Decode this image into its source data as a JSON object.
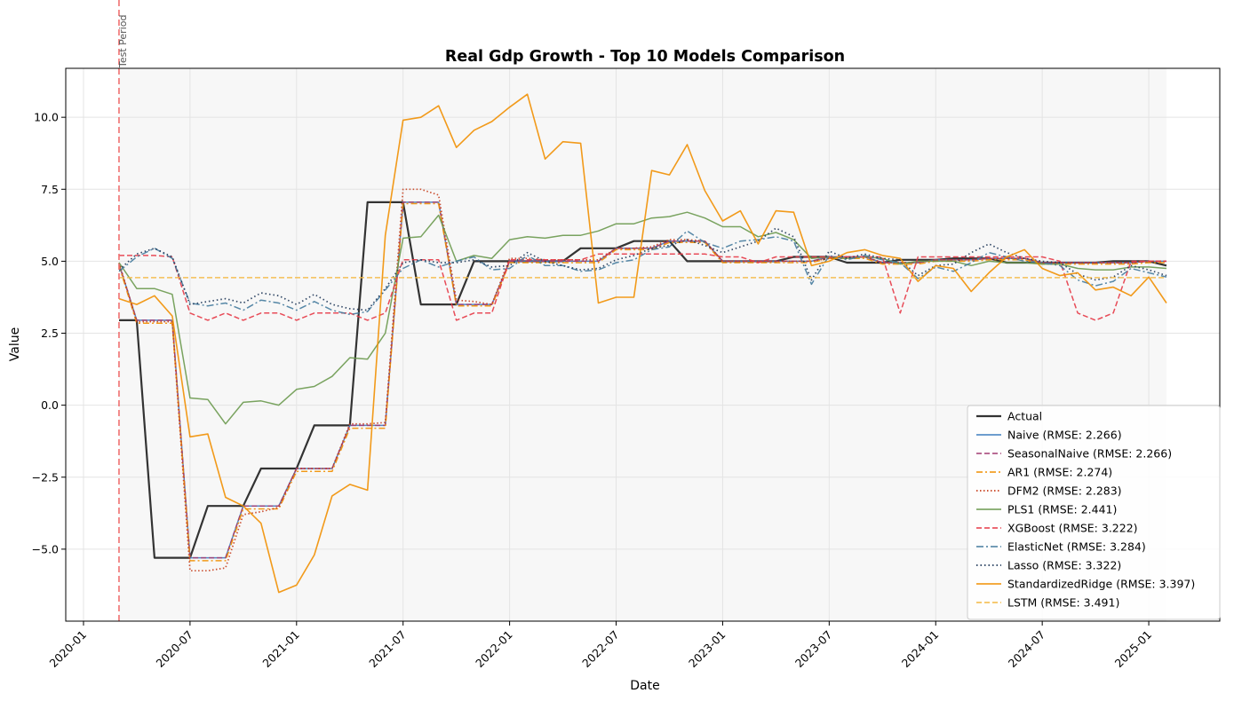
{
  "chart_data": {
    "type": "line",
    "title": "Real Gdp Growth - Top 10 Models Comparison",
    "xlabel": "Date",
    "ylabel": "Value",
    "x_ticks": [
      "2020-01",
      "2020-07",
      "2021-01",
      "2021-07",
      "2022-01",
      "2022-07",
      "2023-01",
      "2023-07",
      "2024-01",
      "2024-07",
      "2025-01"
    ],
    "y_ticks": [
      "−5.0",
      "−2.5",
      "0.0",
      "2.5",
      "5.0",
      "7.5",
      "10.0"
    ],
    "xlim": [
      "2019-12",
      "2025-05"
    ],
    "ylim": [
      -7.5,
      11.7
    ],
    "grid": true,
    "legend_position": "lower-right",
    "test_period_start": "2020-03",
    "test_period_label": "Test Period",
    "x_months": [
      "2020-03",
      "2020-04",
      "2020-05",
      "2020-06",
      "2020-07",
      "2020-08",
      "2020-09",
      "2020-10",
      "2020-11",
      "2020-12",
      "2021-01",
      "2021-02",
      "2021-03",
      "2021-04",
      "2021-05",
      "2021-06",
      "2021-07",
      "2021-08",
      "2021-09",
      "2021-10",
      "2021-11",
      "2021-12",
      "2022-01",
      "2022-02",
      "2022-03",
      "2022-04",
      "2022-05",
      "2022-06",
      "2022-07",
      "2022-08",
      "2022-09",
      "2022-10",
      "2022-11",
      "2022-12",
      "2023-01",
      "2023-02",
      "2023-03",
      "2023-04",
      "2023-05",
      "2023-06",
      "2023-07",
      "2023-08",
      "2023-09",
      "2023-10",
      "2023-11",
      "2023-12",
      "2024-01",
      "2024-02",
      "2024-03",
      "2024-04",
      "2024-05",
      "2024-06",
      "2024-07",
      "2024-08",
      "2024-09",
      "2024-10",
      "2024-11",
      "2024-12",
      "2025-01",
      "2025-02"
    ],
    "series": [
      {
        "name": "Actual",
        "color": "#333333",
        "dash": "",
        "width": 2.2,
        "values": [
          2.95,
          2.95,
          -5.3,
          -5.3,
          -5.3,
          -3.5,
          -3.5,
          -3.5,
          -2.2,
          -2.2,
          -2.2,
          -0.7,
          -0.7,
          -0.7,
          7.05,
          7.05,
          7.05,
          3.5,
          3.5,
          3.5,
          5.0,
          5.0,
          5.0,
          5.0,
          5.0,
          5.0,
          5.45,
          5.45,
          5.45,
          5.7,
          5.7,
          5.7,
          5.0,
          5.0,
          5.0,
          5.0,
          5.0,
          5.0,
          5.15,
          5.15,
          5.15,
          4.95,
          4.95,
          4.95,
          5.05,
          5.05,
          5.05,
          5.1,
          5.1,
          5.1,
          4.95,
          4.95,
          4.95,
          4.95,
          4.95,
          4.95,
          5.0,
          5.0,
          5.0,
          4.85
        ]
      },
      {
        "name": "Naive (RMSE: 2.266)",
        "color": "#3d7dbf",
        "dash": "",
        "width": 1.5,
        "values": [
          4.9,
          2.95,
          2.95,
          2.95,
          -5.3,
          -5.3,
          -5.3,
          -3.5,
          -3.5,
          -3.5,
          -2.2,
          -2.2,
          -2.2,
          -0.7,
          -0.7,
          -0.7,
          7.05,
          7.05,
          7.05,
          3.5,
          3.5,
          3.5,
          5.0,
          5.0,
          5.0,
          5.0,
          5.0,
          5.0,
          5.45,
          5.45,
          5.45,
          5.7,
          5.7,
          5.7,
          5.0,
          5.0,
          5.0,
          5.0,
          5.0,
          5.0,
          5.15,
          5.15,
          5.15,
          4.95,
          4.95,
          4.95,
          5.05,
          5.05,
          5.05,
          5.1,
          5.1,
          5.1,
          4.95,
          4.95,
          4.95,
          4.95,
          4.95,
          4.95,
          5.0,
          5.0
        ]
      },
      {
        "name": "SeasonalNaive (RMSE: 2.266)",
        "color": "#a23b72",
        "dash": "6,3",
        "width": 1.5,
        "values": [
          4.9,
          2.95,
          2.95,
          2.95,
          -5.3,
          -5.3,
          -5.3,
          -3.5,
          -3.5,
          -3.5,
          -2.2,
          -2.2,
          -2.2,
          -0.7,
          -0.7,
          -0.7,
          7.05,
          7.05,
          7.05,
          3.5,
          3.5,
          3.5,
          5.0,
          5.0,
          5.0,
          5.0,
          5.0,
          5.0,
          5.45,
          5.45,
          5.45,
          5.7,
          5.7,
          5.7,
          5.0,
          5.0,
          5.0,
          5.0,
          5.0,
          5.0,
          5.15,
          5.15,
          5.15,
          4.95,
          4.95,
          4.95,
          5.05,
          5.05,
          5.05,
          5.1,
          5.1,
          5.1,
          4.95,
          4.95,
          4.95,
          4.95,
          4.95,
          4.95,
          5.0,
          5.0
        ]
      },
      {
        "name": "AR1 (RMSE: 2.274)",
        "color": "#f18f01",
        "dash": "7,3,2,3",
        "width": 1.5,
        "values": [
          4.85,
          2.85,
          2.85,
          2.85,
          -5.4,
          -5.4,
          -5.4,
          -3.6,
          -3.6,
          -3.6,
          -2.3,
          -2.3,
          -2.3,
          -0.8,
          -0.8,
          -0.8,
          7.0,
          7.0,
          7.0,
          3.45,
          3.45,
          3.45,
          4.95,
          4.95,
          4.95,
          4.95,
          4.95,
          4.95,
          5.4,
          5.4,
          5.4,
          5.65,
          5.65,
          5.65,
          4.95,
          4.95,
          4.95,
          4.95,
          4.95,
          4.95,
          5.1,
          5.1,
          5.1,
          4.9,
          4.9,
          4.9,
          5.0,
          5.0,
          5.0,
          5.05,
          5.05,
          5.05,
          4.9,
          4.9,
          4.9,
          4.9,
          4.9,
          4.9,
          4.95,
          4.95
        ]
      },
      {
        "name": "DFM2 (RMSE: 2.283)",
        "color": "#c73e1d",
        "dash": "1.5,2.5",
        "width": 1.7,
        "values": [
          4.95,
          2.9,
          2.9,
          2.9,
          -5.75,
          -5.75,
          -5.65,
          -3.8,
          -3.7,
          -3.55,
          -2.2,
          -2.2,
          -2.2,
          -0.65,
          -0.65,
          -0.6,
          7.5,
          7.5,
          7.3,
          3.65,
          3.6,
          3.5,
          5.1,
          5.1,
          5.05,
          5.05,
          5.05,
          5.05,
          5.45,
          5.45,
          5.5,
          5.75,
          5.75,
          5.7,
          5.0,
          5.0,
          5.0,
          5.0,
          5.0,
          5.0,
          5.1,
          5.15,
          5.15,
          4.95,
          4.95,
          4.95,
          5.05,
          5.05,
          5.05,
          5.1,
          5.1,
          5.1,
          4.95,
          4.95,
          4.95,
          4.95,
          4.95,
          4.95,
          5.0,
          5.0
        ]
      },
      {
        "name": "PLS1 (RMSE: 2.441)",
        "color": "#6a994e",
        "dash": "",
        "width": 1.5,
        "values": [
          4.95,
          4.05,
          4.05,
          3.85,
          0.25,
          0.2,
          -0.65,
          0.1,
          0.15,
          0.0,
          0.55,
          0.65,
          1.0,
          1.65,
          1.6,
          2.5,
          5.8,
          5.85,
          6.6,
          5.0,
          5.2,
          5.1,
          5.75,
          5.85,
          5.8,
          5.9,
          5.9,
          6.05,
          6.3,
          6.3,
          6.5,
          6.55,
          6.7,
          6.5,
          6.2,
          6.2,
          5.85,
          6.0,
          5.75,
          5.1,
          5.15,
          5.1,
          5.15,
          5.1,
          4.9,
          5.0,
          5.0,
          5.0,
          4.85,
          5.0,
          4.95,
          4.95,
          4.9,
          4.9,
          4.75,
          4.7,
          4.7,
          4.8,
          4.8,
          4.75
        ]
      },
      {
        "name": "XGBoost (RMSE: 3.222)",
        "color": "#e63946",
        "dash": "6,3",
        "width": 1.5,
        "values": [
          5.2,
          5.2,
          5.2,
          5.15,
          3.2,
          2.95,
          3.2,
          2.95,
          3.2,
          3.2,
          2.95,
          3.2,
          3.2,
          3.2,
          2.95,
          3.2,
          5.05,
          5.05,
          5.05,
          2.95,
          3.2,
          3.2,
          5.05,
          5.05,
          5.05,
          5.05,
          5.05,
          5.25,
          5.25,
          5.25,
          5.25,
          5.25,
          5.25,
          5.25,
          5.15,
          5.15,
          4.95,
          5.15,
          5.15,
          5.15,
          5.15,
          5.15,
          5.15,
          5.15,
          3.2,
          5.15,
          5.15,
          5.15,
          5.15,
          5.15,
          5.15,
          5.15,
          5.15,
          5.0,
          3.2,
          2.95,
          3.2,
          5.0,
          5.0,
          5.0
        ]
      },
      {
        "name": "ElasticNet (RMSE: 3.284)",
        "color": "#457b9d",
        "dash": "8,3,2,3",
        "width": 1.5,
        "values": [
          4.65,
          5.15,
          5.45,
          5.1,
          3.55,
          3.45,
          3.55,
          3.3,
          3.65,
          3.55,
          3.3,
          3.6,
          3.3,
          3.15,
          3.25,
          4.0,
          4.75,
          5.05,
          4.8,
          5.0,
          5.15,
          4.7,
          4.75,
          5.2,
          4.85,
          4.85,
          4.65,
          4.7,
          4.95,
          5.05,
          5.4,
          5.5,
          6.05,
          5.65,
          5.45,
          5.7,
          5.75,
          5.85,
          5.7,
          4.2,
          5.2,
          5.05,
          5.2,
          5.05,
          4.95,
          4.4,
          4.8,
          4.65,
          4.95,
          5.3,
          5.15,
          5.0,
          4.95,
          4.85,
          4.35,
          4.15,
          4.3,
          4.75,
          4.6,
          4.45
        ]
      },
      {
        "name": "Lasso (RMSE: 3.322)",
        "color": "#1d3557",
        "dash": "1.5,3",
        "width": 1.7,
        "values": [
          4.7,
          5.25,
          5.45,
          5.15,
          3.5,
          3.6,
          3.7,
          3.55,
          3.9,
          3.8,
          3.5,
          3.85,
          3.5,
          3.35,
          3.3,
          4.05,
          4.95,
          5.05,
          4.95,
          4.95,
          5.05,
          4.8,
          4.85,
          5.3,
          5.0,
          4.85,
          4.7,
          4.75,
          5.05,
          5.2,
          5.45,
          5.55,
          5.75,
          5.55,
          5.3,
          5.5,
          5.7,
          6.15,
          5.85,
          4.35,
          5.35,
          5.1,
          5.25,
          5.1,
          5.05,
          4.5,
          4.85,
          4.9,
          5.3,
          5.6,
          5.3,
          5.1,
          5.0,
          4.95,
          4.55,
          4.35,
          4.45,
          4.85,
          4.7,
          4.5
        ]
      },
      {
        "name": "StandardizedRidge (RMSE: 3.397)",
        "color": "#f18f01",
        "dash": "",
        "width": 1.6,
        "values": [
          3.7,
          3.5,
          3.8,
          3.1,
          -1.1,
          -1.0,
          -3.2,
          -3.5,
          -4.1,
          -6.5,
          -6.25,
          -5.2,
          -3.15,
          -2.75,
          -2.95,
          5.9,
          9.9,
          10.0,
          10.4,
          8.95,
          9.55,
          9.85,
          10.35,
          10.8,
          8.55,
          9.15,
          9.1,
          3.55,
          3.75,
          3.75,
          8.15,
          8.0,
          9.05,
          7.45,
          6.4,
          6.75,
          5.6,
          6.75,
          6.7,
          4.85,
          5.0,
          5.3,
          5.4,
          5.2,
          5.1,
          4.3,
          4.85,
          4.75,
          3.95,
          4.6,
          5.15,
          5.4,
          4.75,
          4.5,
          4.6,
          4.0,
          4.1,
          3.8,
          4.45,
          3.55
        ]
      },
      {
        "name": "LSTM (RMSE: 3.491)",
        "color": "#f4b942",
        "dash": "6,3",
        "width": 1.5,
        "values": [
          4.43,
          4.43,
          4.43,
          4.43,
          4.43,
          4.43,
          4.43,
          4.43,
          4.43,
          4.43,
          4.43,
          4.43,
          4.43,
          4.43,
          4.43,
          4.43,
          4.43,
          4.43,
          4.43,
          4.43,
          4.43,
          4.43,
          4.43,
          4.43,
          4.43,
          4.43,
          4.43,
          4.43,
          4.43,
          4.43,
          4.43,
          4.43,
          4.43,
          4.43,
          4.43,
          4.43,
          4.43,
          4.43,
          4.43,
          4.43,
          4.43,
          4.43,
          4.43,
          4.43,
          4.43,
          4.43,
          4.43,
          4.43,
          4.43,
          4.43,
          4.43,
          4.43,
          4.43,
          4.43,
          4.43,
          4.43,
          4.43,
          4.43,
          4.43,
          4.43
        ]
      }
    ]
  }
}
